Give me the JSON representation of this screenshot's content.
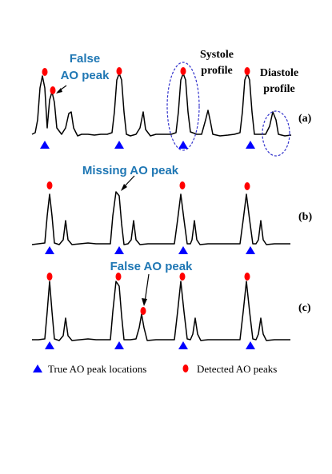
{
  "annotations": {
    "false_peak_a_line1": "False",
    "false_peak_a_line2": "AO peak",
    "systole_line1": "Systole",
    "systole_line2": "profile",
    "diastole_line1": "Diastole",
    "diastole_line2": "profile",
    "missing_peak": "Missing AO peak",
    "false_peak_c": "False AO peak"
  },
  "panels": {
    "a": "(a)",
    "b": "(b)",
    "c": "(c)"
  },
  "legend": {
    "true_peaks": "True AO peak locations",
    "detected_peaks": "Detected AO peaks"
  },
  "colors": {
    "true_marker": "#0000ff",
    "detected_marker": "#ff0000",
    "annotation_text": "#1f77b4",
    "profile_ellipse": "#3333cc"
  }
}
